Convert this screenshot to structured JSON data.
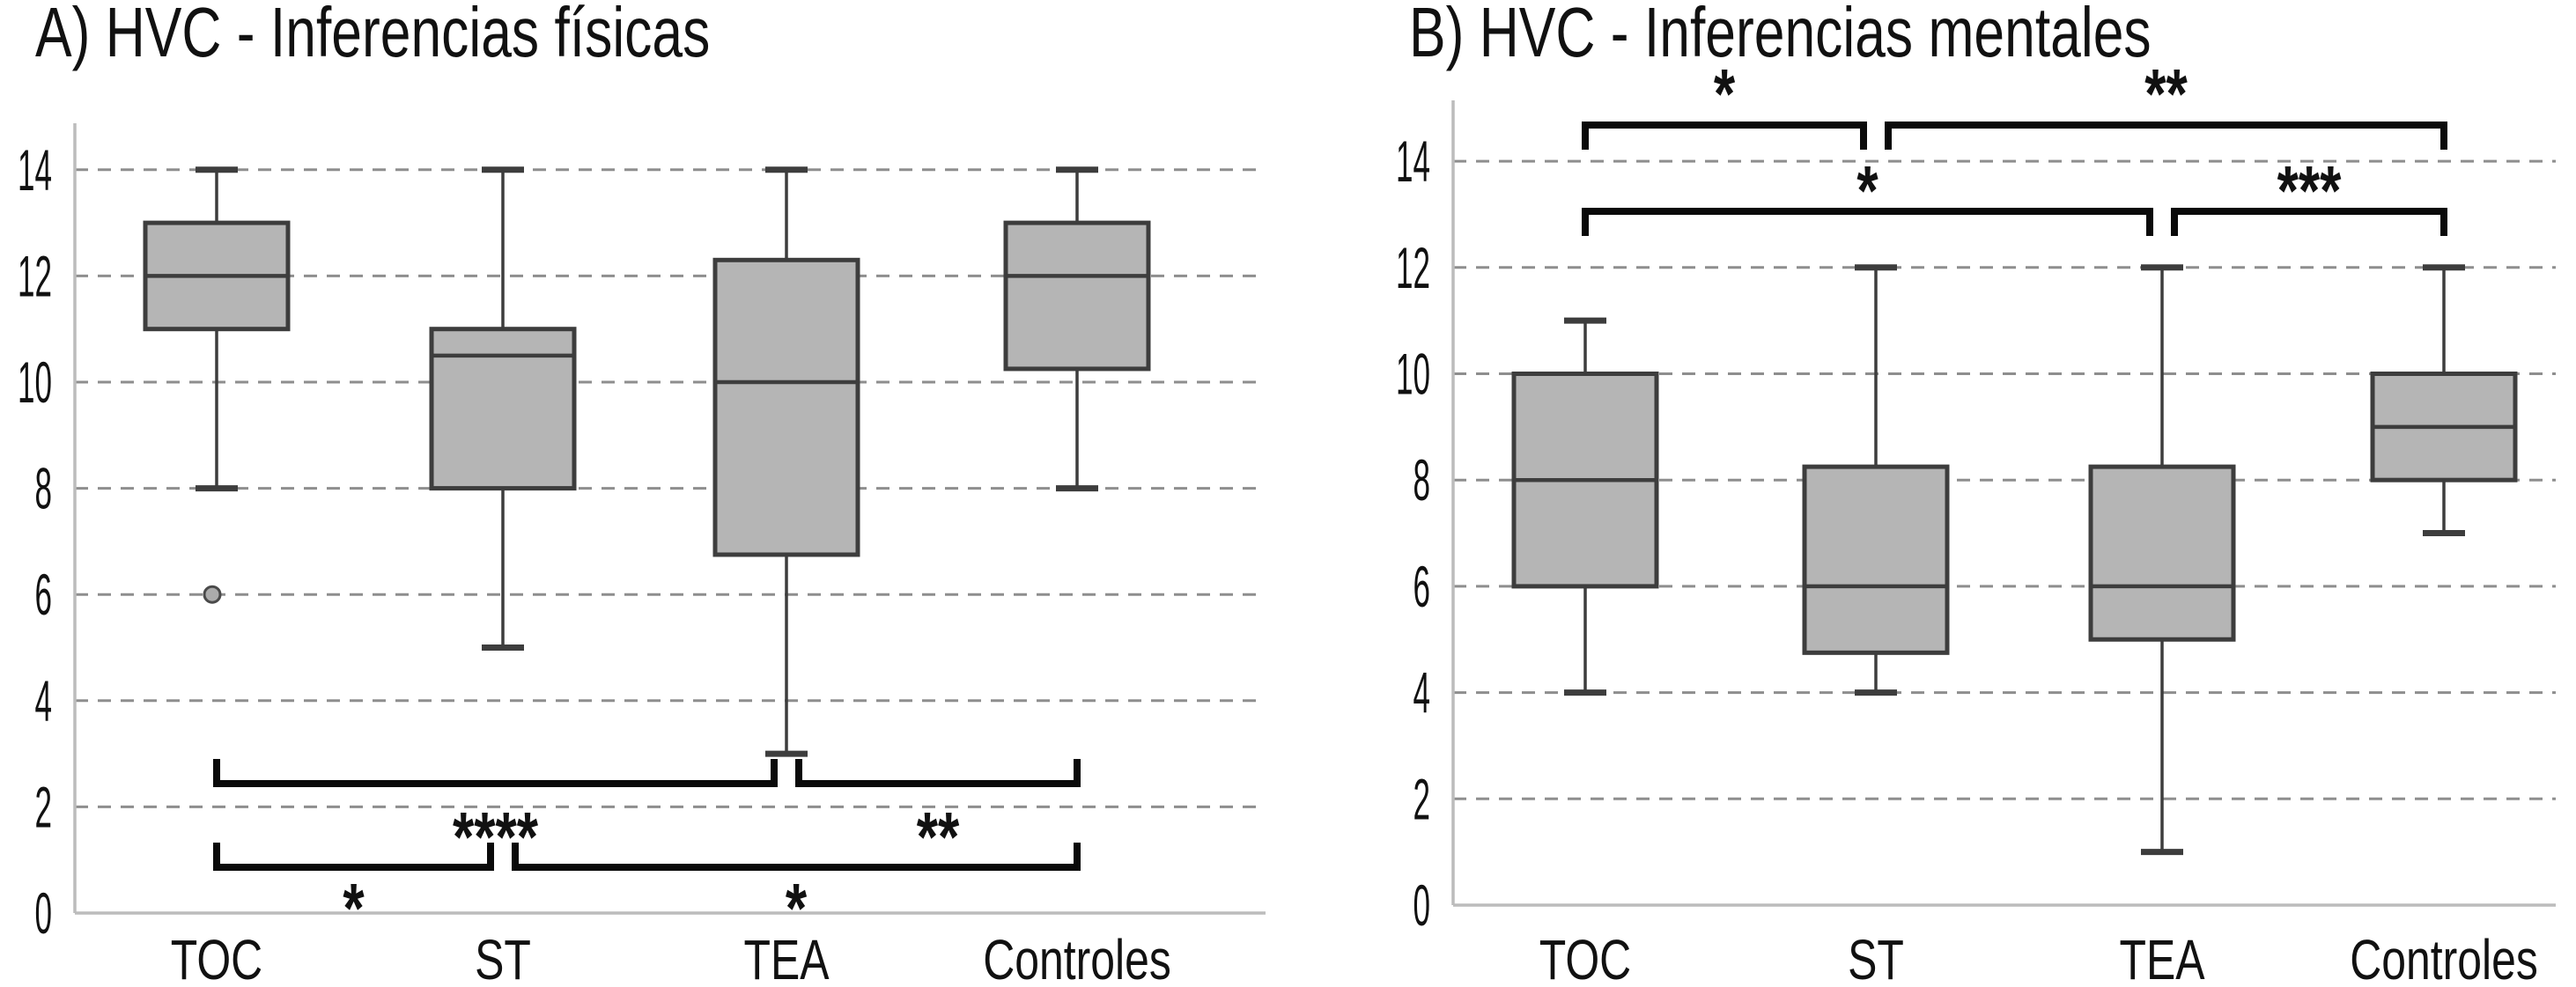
{
  "figure": {
    "background": "#ffffff",
    "colors": {
      "text": "#111111",
      "box_fill": "#b5b5b5",
      "box_stroke": "#3d3d3d",
      "grid": "#8e8e8e",
      "axis": "#bcbcbc",
      "bracket": "#0a0a0a",
      "outlier_fill": "#ababab"
    }
  },
  "chart_data": [
    {
      "type": "boxplot",
      "panel": "A",
      "title": "A) HVC - Inferencias físicas",
      "categories": [
        "TOC",
        "ST",
        "TEA",
        "Controles"
      ],
      "yticks": [
        0,
        2,
        4,
        6,
        8,
        10,
        12,
        14
      ],
      "ylim": [
        0,
        15
      ],
      "grid": "horizontal-dashed",
      "legend": "none",
      "boxes": [
        {
          "category": "TOC",
          "whisker_low": 8,
          "q1": 11,
          "median": 12,
          "q3": 13,
          "whisker_high": 14,
          "outliers": [
            6
          ]
        },
        {
          "category": "ST",
          "whisker_low": 5,
          "q1": 8,
          "median": 10.5,
          "q3": 11,
          "whisker_high": 14,
          "outliers": []
        },
        {
          "category": "TEA",
          "whisker_low": 3,
          "q1": 6.75,
          "median": 10,
          "q3": 12.3,
          "whisker_high": 14,
          "outliers": []
        },
        {
          "category": "Controles",
          "whisker_low": 8,
          "q1": 10.25,
          "median": 12,
          "q3": 13,
          "whisker_high": 14,
          "outliers": []
        }
      ],
      "significance": {
        "placement": "below",
        "rows": [
          [
            {
              "from": "TOC",
              "to": "TEA",
              "label": "****"
            },
            {
              "from": "TEA",
              "to": "Controles",
              "label": "**"
            }
          ],
          [
            {
              "from": "TOC",
              "to": "ST",
              "label": "*"
            },
            {
              "from": "ST",
              "to": "Controles",
              "label": "*"
            }
          ]
        ]
      }
    },
    {
      "type": "boxplot",
      "panel": "B",
      "title": "B) HVC - Inferencias mentales",
      "categories": [
        "TOC",
        "ST",
        "TEA",
        "Controles"
      ],
      "yticks": [
        0,
        2,
        4,
        6,
        8,
        10,
        12,
        14
      ],
      "ylim": [
        0,
        15
      ],
      "grid": "horizontal-dashed",
      "legend": "none",
      "boxes": [
        {
          "category": "TOC",
          "whisker_low": 4,
          "q1": 6,
          "median": 8,
          "q3": 10,
          "whisker_high": 11,
          "outliers": []
        },
        {
          "category": "ST",
          "whisker_low": 4,
          "q1": 4.75,
          "median": 6,
          "q3": 8.25,
          "whisker_high": 12,
          "outliers": []
        },
        {
          "category": "TEA",
          "whisker_low": 1,
          "q1": 5,
          "median": 6,
          "q3": 8.25,
          "whisker_high": 12,
          "outliers": []
        },
        {
          "category": "Controles",
          "whisker_low": 7,
          "q1": 8,
          "median": 9,
          "q3": 10,
          "whisker_high": 12,
          "outliers": []
        }
      ],
      "significance": {
        "placement": "above",
        "rows": [
          [
            {
              "from": "TOC",
              "to": "ST",
              "label": "*"
            },
            {
              "from": "ST",
              "to": "Controles",
              "label": "**"
            }
          ],
          [
            {
              "from": "TOC",
              "to": "TEA",
              "label": "*"
            },
            {
              "from": "TEA",
              "to": "Controles",
              "label": "***"
            }
          ]
        ]
      }
    }
  ]
}
